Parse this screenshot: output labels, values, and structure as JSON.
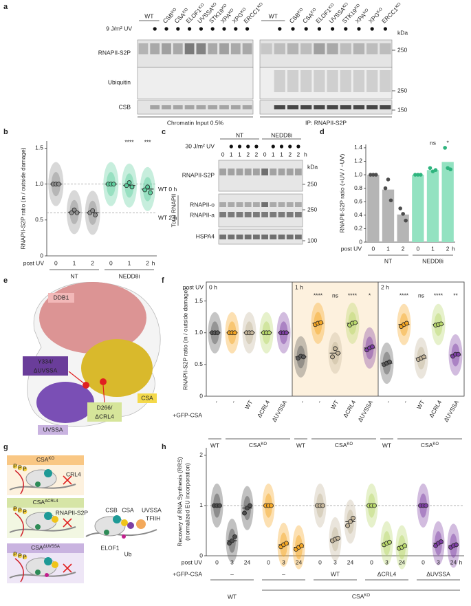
{
  "panel_labels": [
    "a",
    "b",
    "c",
    "d",
    "e",
    "f",
    "g",
    "h"
  ],
  "panel_a": {
    "uv_label": "9 J/m² UV",
    "samples": [
      {
        "name": "WT"
      },
      {
        "name": "CSB",
        "sup": "KO"
      },
      {
        "name": "CSA",
        "sup": "KO"
      },
      {
        "name": "ELOF1",
        "sup": "KO"
      },
      {
        "name": "UVSSA",
        "sup": "KO"
      },
      {
        "name": "STK19",
        "sup": "KO"
      },
      {
        "name": "XPA",
        "sup": "KO"
      },
      {
        "name": "XPG",
        "sup": "KO"
      },
      {
        "name": "ERCC1",
        "sup": "KO"
      }
    ],
    "rows": [
      "RNAPII-S2P",
      "Ubiquitin",
      "CSB"
    ],
    "kda_label": "kDa",
    "markers": [
      250,
      250,
      150
    ],
    "groups": [
      "Chromatin Input 0.5%",
      "IP: RNAPII-S2P"
    ]
  },
  "panel_c": {
    "uv_label": "30 J/m² UV",
    "timepoints": [
      0,
      1,
      1,
      2,
      2
    ],
    "unit": "h",
    "groups": [
      "NT",
      "NEDD8i"
    ],
    "rows": [
      "RNAPII-S2P",
      "RNAPII-o",
      "RNAPII-a",
      "HSPA4"
    ],
    "side_label": "Total RNAPII",
    "kda_label": "kDa",
    "markers": [
      250,
      250,
      100
    ]
  },
  "panel_e": {
    "ddb1": "DDB1",
    "csa": "CSA",
    "uvssa": "UVSSA",
    "y334": "Y334/",
    "d_uvssa": "ΔUVSSA",
    "d266": "D266/",
    "d_crl4": "ΔCRL4"
  },
  "panel_g": {
    "states": [
      {
        "name": "CSA",
        "sup": "KO"
      },
      {
        "name": "CSA",
        "sup": "ΔCRL4"
      },
      {
        "name": "CSA",
        "sup": "ΔUVSSA"
      }
    ],
    "crl4": "CRL4",
    "phospho": "P",
    "components": [
      "RNAPII-S2P",
      "CSB",
      "CSA",
      "UVSSA",
      "TFIIH",
      "ELOF1",
      "Ub"
    ]
  },
  "chart_data": [
    {
      "type": "strip",
      "ylabel": "RNAPII-S2P ratio (in / outside damage)",
      "xlabel": "post UV",
      "categories": [
        "0",
        "1",
        "2",
        "0",
        "1",
        "2"
      ],
      "unit": "h",
      "groups": [
        "NT",
        "NEDD8i"
      ],
      "values": [
        1,
        0.61,
        0.6,
        1,
        0.98,
        0.93
      ],
      "replicates": [
        [
          1,
          1,
          1
        ],
        [
          0.6,
          0.64,
          0.6
        ],
        [
          0.6,
          0.63,
          0.57
        ],
        [
          1,
          1,
          1
        ],
        [
          0.98,
          1.02,
          0.96
        ],
        [
          0.92,
          0.96,
          0.88
        ]
      ],
      "significance": [
        null,
        null,
        null,
        null,
        "****",
        "***"
      ],
      "colors": [
        "#8f8f8f",
        "#8f8f8f",
        "#8f8f8f",
        "#5fcf9f",
        "#5fcf9f",
        "#5fcf9f"
      ],
      "reference_lines": [
        {
          "value": 1,
          "label": "WT 0 h"
        },
        {
          "value": 0.6,
          "label": "WT 2 h"
        }
      ],
      "ylim": [
        0,
        1.6
      ],
      "yticks": [
        0,
        0.5,
        {
          "value": 1,
          "label": "1.0"
        },
        1.5
      ]
    },
    {
      "type": "bar",
      "ylabel": "RNAPII-S2P ratio (+UV / −UV)",
      "xlabel": "post UV",
      "categories": [
        "0",
        "1",
        "2",
        "0",
        "1",
        "2"
      ],
      "unit": "h",
      "groups": [
        "NT",
        "NEDD8i"
      ],
      "values": [
        1,
        0.78,
        0.41,
        1,
        1.07,
        1.19
      ],
      "replicates": [
        [
          1,
          1,
          1
        ],
        [
          0.8,
          0.93,
          0.62
        ],
        [
          0.5,
          0.42,
          0.32
        ],
        [
          1,
          1,
          1
        ],
        [
          1.1,
          1.05,
          1.07
        ],
        [
          1.4,
          1.1,
          1.08
        ]
      ],
      "significance": [
        null,
        null,
        null,
        null,
        "ns",
        "*"
      ],
      "colors": [
        "#b5b5b5",
        "#b5b5b5",
        "#b5b5b5",
        "#93e2c1",
        "#93e2c1",
        "#93e2c1"
      ],
      "point_colors": [
        "#4d4d4d",
        "#4d4d4d",
        "#4d4d4d",
        "#2eb47e",
        "#2eb47e",
        "#2eb47e"
      ],
      "ylim": [
        0,
        1.45
      ],
      "yticks": [
        0,
        0.2,
        0.4,
        0.6,
        0.8,
        {
          "value": 1,
          "label": "1.0"
        },
        1.2,
        1.4
      ]
    },
    {
      "type": "strip",
      "ylabel": "RNAPII-S2P ratio (in / outside damage)",
      "xlabel": "post UV",
      "sections": [
        "0 h",
        "1 h",
        "2 h"
      ],
      "condition_label": "+GFP-CSA",
      "conditions": [
        "-",
        "-",
        "WT",
        "ΔCRL4",
        "ΔUVSSA"
      ],
      "lines": [
        "WT",
        {
          "name": "CSA",
          "sup": "KO"
        }
      ],
      "values": [
        1,
        1,
        1,
        1,
        1,
        0.62,
        1.15,
        0.68,
        1.15,
        0.76,
        0.52,
        1.13,
        0.6,
        1.13,
        0.65
      ],
      "replicates": [
        [
          1,
          1,
          1
        ],
        [
          1,
          1,
          1
        ],
        [
          1,
          1,
          1
        ],
        [
          1,
          1,
          1
        ],
        [
          1,
          1,
          1
        ],
        [
          0.6,
          0.63,
          0.62
        ],
        [
          1.13,
          1.15,
          1.16
        ],
        [
          0.62,
          0.75,
          0.68
        ],
        [
          1.12,
          1.15,
          1.16
        ],
        [
          0.73,
          0.76,
          0.78
        ],
        [
          0.5,
          0.52,
          0.54
        ],
        [
          1.1,
          1.13,
          1.15
        ],
        [
          0.58,
          0.6,
          0.62
        ],
        [
          1.12,
          1.13,
          1.14
        ],
        [
          0.63,
          0.66,
          0.66
        ]
      ],
      "significance": [
        null,
        null,
        null,
        null,
        null,
        null,
        "****",
        "ns",
        "****",
        "*",
        null,
        "****",
        "ns",
        "****",
        "**"
      ],
      "colors": [
        "#5a5a5a",
        "#f5a623",
        "#c4b59a",
        "#b8d86b",
        "#7d3fa3",
        "#5a5a5a",
        "#f5a623",
        "#c4b59a",
        "#b8d86b",
        "#7d3fa3",
        "#5a5a5a",
        "#f5a623",
        "#c4b59a",
        "#b8d86b",
        "#7d3fa3"
      ],
      "ylim": [
        0,
        1.8
      ],
      "yticks": [
        0,
        0.5,
        {
          "value": 1,
          "label": "1.0"
        },
        1.5
      ]
    },
    {
      "type": "strip",
      "ylabel": "Recovery of RNA Synthesis (RRS)",
      "ylabel2": "(normalized EU incorporation)",
      "xlabel": "post UV",
      "categories": [
        "0",
        "3",
        "24",
        "0",
        "3",
        "24",
        "0",
        "3",
        "24",
        "0",
        "3",
        "24",
        "0",
        "3",
        "24"
      ],
      "unit": "h",
      "condition_label": "+GFP-CSA",
      "conditions": [
        "–",
        "–",
        "WT",
        "ΔCRL4",
        "ΔUVSSA"
      ],
      "lines": [
        "WT",
        {
          "name": "CSA",
          "sup": "KO"
        }
      ],
      "values": [
        1,
        0.3,
        0.95,
        1,
        0.22,
        0.17,
        1,
        0.33,
        0.68,
        1,
        0.25,
        0.17,
        1,
        0.25,
        0.2
      ],
      "replicates": [
        [
          1,
          1,
          1
        ],
        [
          0.25,
          0.3,
          0.38
        ],
        [
          0.85,
          0.95,
          1.0
        ],
        [
          1,
          1,
          1
        ],
        [
          0.18,
          0.22,
          0.25
        ],
        [
          0.13,
          0.17,
          0.2
        ],
        [
          1,
          1,
          1
        ],
        [
          0.3,
          0.33,
          0.35
        ],
        [
          0.6,
          0.68,
          0.75
        ],
        [
          1,
          1,
          1
        ],
        [
          0.22,
          0.25,
          0.27
        ],
        [
          0.15,
          0.17,
          0.2
        ],
        [
          1,
          1,
          1
        ],
        [
          0.2,
          0.25,
          0.28
        ],
        [
          0.17,
          0.2,
          0.22
        ]
      ],
      "colors": [
        "#4d4d4d",
        "#4d4d4d",
        "#4d4d4d",
        "#f5a623",
        "#f5a623",
        "#f5a623",
        "#c4b59a",
        "#c4b59a",
        "#c4b59a",
        "#b8d86b",
        "#b8d86b",
        "#b8d86b",
        "#7d3fa3",
        "#7d3fa3",
        "#7d3fa3"
      ],
      "reference_lines": [
        {
          "value": 1
        }
      ],
      "ylim": [
        0,
        2.15
      ],
      "yticks": [
        0,
        1,
        2
      ]
    }
  ]
}
